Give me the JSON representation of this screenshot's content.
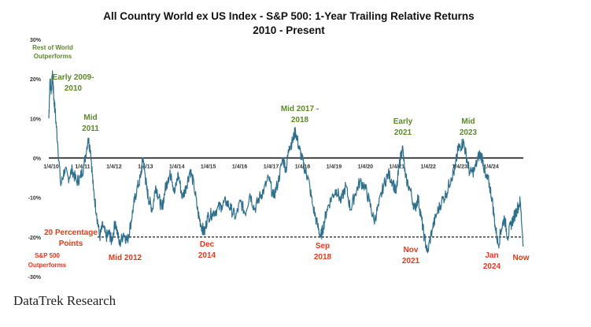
{
  "chart_data": {
    "type": "line",
    "title": "All Country World ex US Index - S&P 500: 1-Year Trailing Relative Returns",
    "subtitle": "2010 - Present",
    "xlabel": "",
    "ylabel": "",
    "ylim": [
      -30,
      30
    ],
    "y_tick_labels": [
      "30%",
      "20%",
      "10%",
      "0%",
      "-10%",
      "-20%",
      "-30%"
    ],
    "y_tick_values": [
      30,
      20,
      10,
      0,
      -10,
      -20,
      -30
    ],
    "x_tick_labels": [
      "1/4/10",
      "1/4/11",
      "1/4/12",
      "1/4/13",
      "1/4/14",
      "1/4/15",
      "1/4/16",
      "1/4/17",
      "1/4/18",
      "1/4/19",
      "1/4/20",
      "1/4/21",
      "1/4/22",
      "1/4/23",
      "1/4/24"
    ],
    "x_tick_values": [
      2010,
      2011,
      2012,
      2013,
      2014,
      2015,
      2016,
      2017,
      2018,
      2019,
      2020,
      2021,
      2022,
      2023,
      2024
    ],
    "xlim": [
      2010,
      2025.1
    ],
    "reference_lines": [
      {
        "y": 0,
        "style": "solid",
        "color": "#000000"
      },
      {
        "y": -20,
        "style": "dashed",
        "color": "#000000"
      }
    ],
    "series": [
      {
        "color": "#2e6f8e",
        "x": [
          2010.0,
          2010.04,
          2010.08,
          2010.12,
          2010.16,
          2010.2,
          2010.28,
          2010.38,
          2010.5,
          2010.62,
          2010.75,
          2010.88,
          2011.0,
          2011.12,
          2011.25,
          2011.33,
          2011.42,
          2011.52,
          2011.62,
          2011.72,
          2011.82,
          2011.92,
          2012.0,
          2012.12,
          2012.25,
          2012.38,
          2012.5,
          2012.6,
          2012.7,
          2012.8,
          2012.92,
          2013.0,
          2013.06,
          2013.12,
          2013.2,
          2013.3,
          2013.4,
          2013.5,
          2013.6,
          2013.7,
          2013.8,
          2013.9,
          2014.0,
          2014.12,
          2014.25,
          2014.38,
          2014.5,
          2014.62,
          2014.75,
          2014.85,
          2014.95,
          2015.05,
          2015.2,
          2015.35,
          2015.5,
          2015.65,
          2015.8,
          2015.95,
          2016.1,
          2016.25,
          2016.4,
          2016.55,
          2016.7,
          2016.85,
          2017.0,
          2017.15,
          2017.3,
          2017.45,
          2017.55,
          2017.65,
          2017.75,
          2017.85,
          2017.95,
          2018.05,
          2018.15,
          2018.25,
          2018.4,
          2018.55,
          2018.65,
          2018.72,
          2018.85,
          2019.0,
          2019.15,
          2019.3,
          2019.45,
          2019.6,
          2019.75,
          2019.9,
          2020.05,
          2020.2,
          2020.35,
          2020.5,
          2020.65,
          2020.8,
          2020.95,
          2021.05,
          2021.15,
          2021.25,
          2021.35,
          2021.5,
          2021.65,
          2021.75,
          2021.85,
          2021.95,
          2022.05,
          2022.2,
          2022.35,
          2022.5,
          2022.65,
          2022.8,
          2022.92,
          2023.02,
          2023.1,
          2023.2,
          2023.3,
          2023.4,
          2023.55,
          2023.7,
          2023.8,
          2023.9,
          2024.0,
          2024.1,
          2024.2,
          2024.3,
          2024.4,
          2024.5,
          2024.6,
          2024.7,
          2024.8,
          2024.9,
          2025.0,
          2025.1
        ],
        "values": [
          10,
          20,
          17,
          21,
          15,
          12,
          4,
          -7,
          -3,
          -5,
          -3,
          -6,
          -5,
          -2,
          5,
          2,
          -8,
          -14,
          -20,
          -17,
          -20,
          -19,
          -21,
          -16,
          -22,
          -19,
          -21,
          -17,
          -12,
          -8,
          -5,
          0,
          -4,
          -8,
          -11,
          -13,
          -7,
          -10,
          -13,
          -8,
          -5,
          -4,
          -9,
          -4,
          -10,
          -7,
          -3,
          -7,
          -14,
          -17,
          -19,
          -15,
          -14,
          -13,
          -12,
          -11,
          -13,
          -15,
          -11,
          -14,
          -9,
          -13,
          -10,
          -8,
          -5,
          -10,
          -6,
          0,
          -3,
          3,
          4,
          7,
          3,
          0,
          -3,
          -5,
          -12,
          -17,
          -20,
          -18,
          -13,
          -10,
          -8,
          -11,
          -7,
          -13,
          -9,
          -6,
          -7,
          -11,
          -16,
          -12,
          -7,
          -4,
          -6,
          -9,
          -2,
          3,
          -5,
          -8,
          -13,
          -10,
          -15,
          -20,
          -24,
          -18,
          -14,
          -11,
          -9,
          -5,
          -3,
          2,
          3,
          4,
          0,
          -4,
          -3,
          1,
          0,
          -5,
          -6,
          -10,
          -17,
          -22,
          -18,
          -15,
          -20,
          -17,
          -15,
          -13,
          -11,
          -22
        ]
      }
    ],
    "annotations": [
      {
        "text": "Rest of World",
        "color": "#5a8a2a"
      },
      {
        "text": "Outperforms",
        "color": "#5a8a2a"
      },
      {
        "text": "Early 2009-",
        "color": "#5a8a2a"
      },
      {
        "text": "2010",
        "color": "#5a8a2a"
      },
      {
        "text": "Mid",
        "color": "#5a8a2a"
      },
      {
        "text": "2011",
        "color": "#5a8a2a"
      },
      {
        "text": "Mid 2017 -",
        "color": "#5a8a2a"
      },
      {
        "text": "2018",
        "color": "#5a8a2a"
      },
      {
        "text": "Early",
        "color": "#5a8a2a"
      },
      {
        "text": "2021",
        "color": "#5a8a2a"
      },
      {
        "text": "Mid",
        "color": "#5a8a2a"
      },
      {
        "text": "2023",
        "color": "#5a8a2a"
      },
      {
        "text": "20 Percentage",
        "color": "#e8381b"
      },
      {
        "text": "Points",
        "color": "#e8381b"
      },
      {
        "text": "S&P 500",
        "color": "#e8381b"
      },
      {
        "text": "Outperforms",
        "color": "#e8381b"
      },
      {
        "text": "Mid 2012",
        "color": "#e8381b"
      },
      {
        "text": "Dec",
        "color": "#e8381b"
      },
      {
        "text": "2014",
        "color": "#e8381b"
      },
      {
        "text": "Sep",
        "color": "#e8381b"
      },
      {
        "text": "2018",
        "color": "#e8381b"
      },
      {
        "text": "Nov",
        "color": "#e8381b"
      },
      {
        "text": "2021",
        "color": "#e8381b"
      },
      {
        "text": "Jan",
        "color": "#e8381b"
      },
      {
        "text": "2024",
        "color": "#e8381b"
      },
      {
        "text": "Now",
        "color": "#e8381b"
      }
    ],
    "grid": false,
    "legend": "none"
  },
  "credit": "DataTrek Research"
}
